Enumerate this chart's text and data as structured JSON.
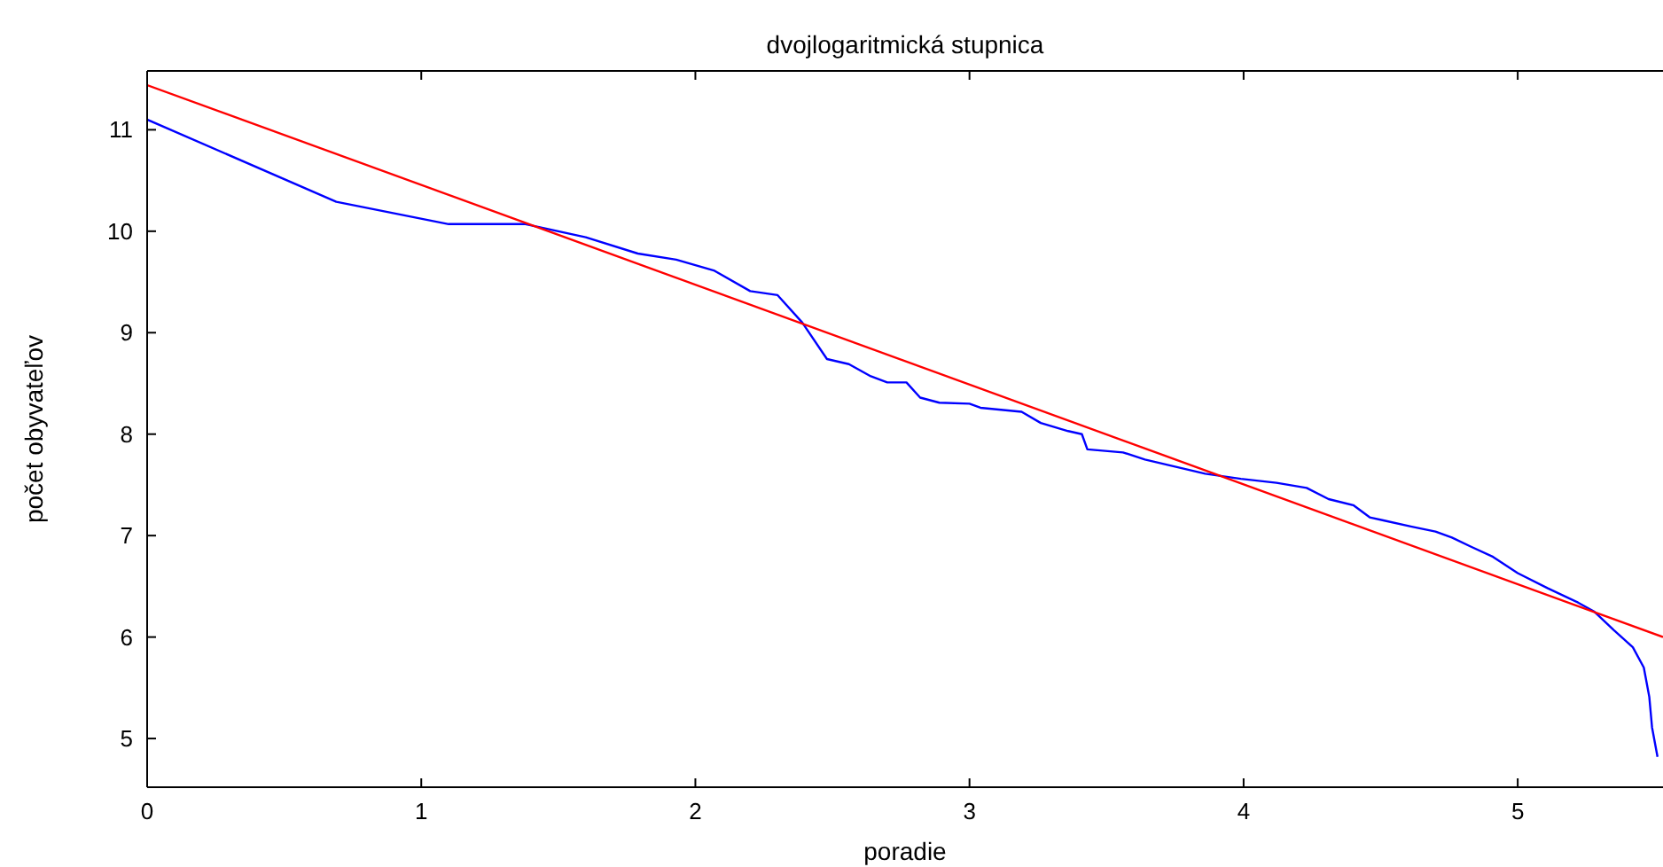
{
  "chart_data": {
    "type": "line",
    "title": "dvojlogaritmická stupnica",
    "xlabel": "poradie",
    "ylabel": "počet obyvateľov",
    "xlim": [
      0,
      5.53
    ],
    "ylim": [
      4.52,
      11.58
    ],
    "xticks": [
      0,
      1,
      2,
      3,
      4,
      5
    ],
    "yticks": [
      5,
      6,
      7,
      8,
      9,
      10,
      11
    ],
    "grid": false,
    "marker": "none",
    "line_style": "solid",
    "series": [
      {
        "color": "#0000ff",
        "x": [
          0,
          0.69,
          1.1,
          1.38,
          1.6,
          1.79,
          1.93,
          2.07,
          2.2,
          2.3,
          2.39,
          2.48,
          2.56,
          2.64,
          2.7,
          2.77,
          2.82,
          2.89,
          3,
          3.04,
          3.19,
          3.26,
          3.36,
          3.41,
          3.43,
          3.56,
          3.64,
          3.75,
          3.86,
          3.99,
          4.12,
          4.23,
          4.31,
          4.4,
          4.46,
          4.51,
          4.61,
          4.7,
          4.76,
          4.83,
          4.91,
          5,
          5.11,
          5.22,
          5.28,
          5.35,
          5.42,
          5.46,
          5.48,
          5.49,
          5.51
        ],
        "values": [
          11.1,
          10.29,
          10.07,
          10.07,
          9.94,
          9.78,
          9.72,
          9.61,
          9.41,
          9.37,
          9.1,
          8.74,
          8.69,
          8.57,
          8.51,
          8.51,
          8.36,
          8.31,
          8.3,
          8.26,
          8.22,
          8.11,
          8.03,
          8,
          7.85,
          7.82,
          7.75,
          7.68,
          7.61,
          7.56,
          7.52,
          7.47,
          7.36,
          7.3,
          7.18,
          7.15,
          7.09,
          7.04,
          6.98,
          6.89,
          6.79,
          6.63,
          6.48,
          6.34,
          6.25,
          6.07,
          5.9,
          5.7,
          5.41,
          5.11,
          4.82
        ]
      },
      {
        "color": "#ff0000",
        "x": [
          0,
          5.53
        ],
        "values": [
          11.44,
          6.0
        ]
      }
    ]
  }
}
